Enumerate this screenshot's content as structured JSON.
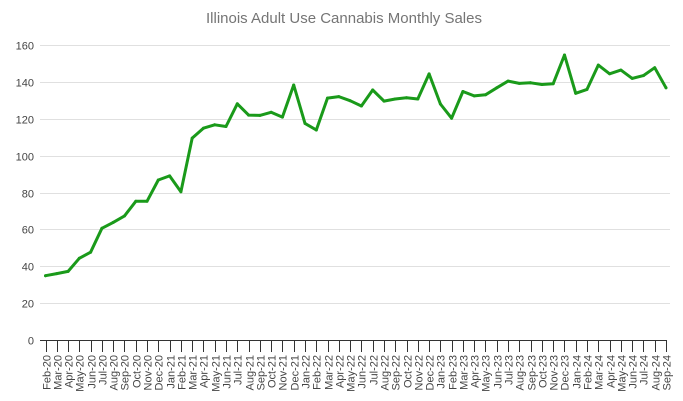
{
  "chart_data": {
    "type": "line",
    "title": "Illinois Adult Use Cannabis Monthly Sales",
    "xlabel": "",
    "ylabel": "",
    "ylim": [
      0,
      160
    ],
    "yticks": [
      0,
      20,
      40,
      60,
      80,
      100,
      120,
      140,
      160
    ],
    "grid": true,
    "legend": "none",
    "color": "#1a9a1a",
    "categories": [
      "Feb-20",
      "Mar-20",
      "Apr-20",
      "May-20",
      "Jun-20",
      "Jul-20",
      "Aug-20",
      "Sep-20",
      "Oct-20",
      "Nov-20",
      "Dec-20",
      "Jan-21",
      "Feb-21",
      "Mar-21",
      "Apr-21",
      "May-21",
      "Jun-21",
      "Jul-21",
      "Aug-21",
      "Sep-21",
      "Oct-21",
      "Nov-21",
      "Dec-21",
      "Jan-22",
      "Feb-22",
      "Mar-22",
      "Apr-22",
      "May-22",
      "Jun-22",
      "Jul-22",
      "Aug-22",
      "Sep-22",
      "Oct-22",
      "Nov-22",
      "Dec-22",
      "Jan-23",
      "Feb-23",
      "Mar-23",
      "Apr-23",
      "May-23",
      "Jun-23",
      "Jul-23",
      "Aug-23",
      "Sep-23",
      "Oct-23",
      "Nov-23",
      "Dec-23",
      "Jan-24",
      "Feb-24",
      "Mar-24",
      "Apr-24",
      "May-24",
      "Jun-24",
      "Jul-24",
      "Aug-24",
      "Sep-24"
    ],
    "series": [
      {
        "name": "Monthly Sales",
        "values": [
          34.9,
          36.0,
          37.2,
          44.3,
          47.6,
          60.6,
          63.8,
          67.3,
          75.2,
          75.2,
          86.8,
          89.0,
          80.4,
          109.5,
          114.9,
          116.7,
          115.8,
          128.1,
          122.0,
          121.8,
          123.5,
          120.9,
          138.3,
          117.5,
          113.9,
          131.2,
          132.0,
          129.8,
          126.9,
          135.6,
          129.6,
          130.7,
          131.4,
          130.7,
          144.3,
          128.0,
          120.3,
          134.8,
          132.4,
          133.0,
          136.8,
          140.4,
          139.2,
          139.5,
          138.6,
          139.0,
          154.6,
          133.8,
          135.9,
          149.1,
          144.4,
          146.4,
          141.9,
          143.4,
          147.7,
          136.8
        ]
      }
    ]
  }
}
